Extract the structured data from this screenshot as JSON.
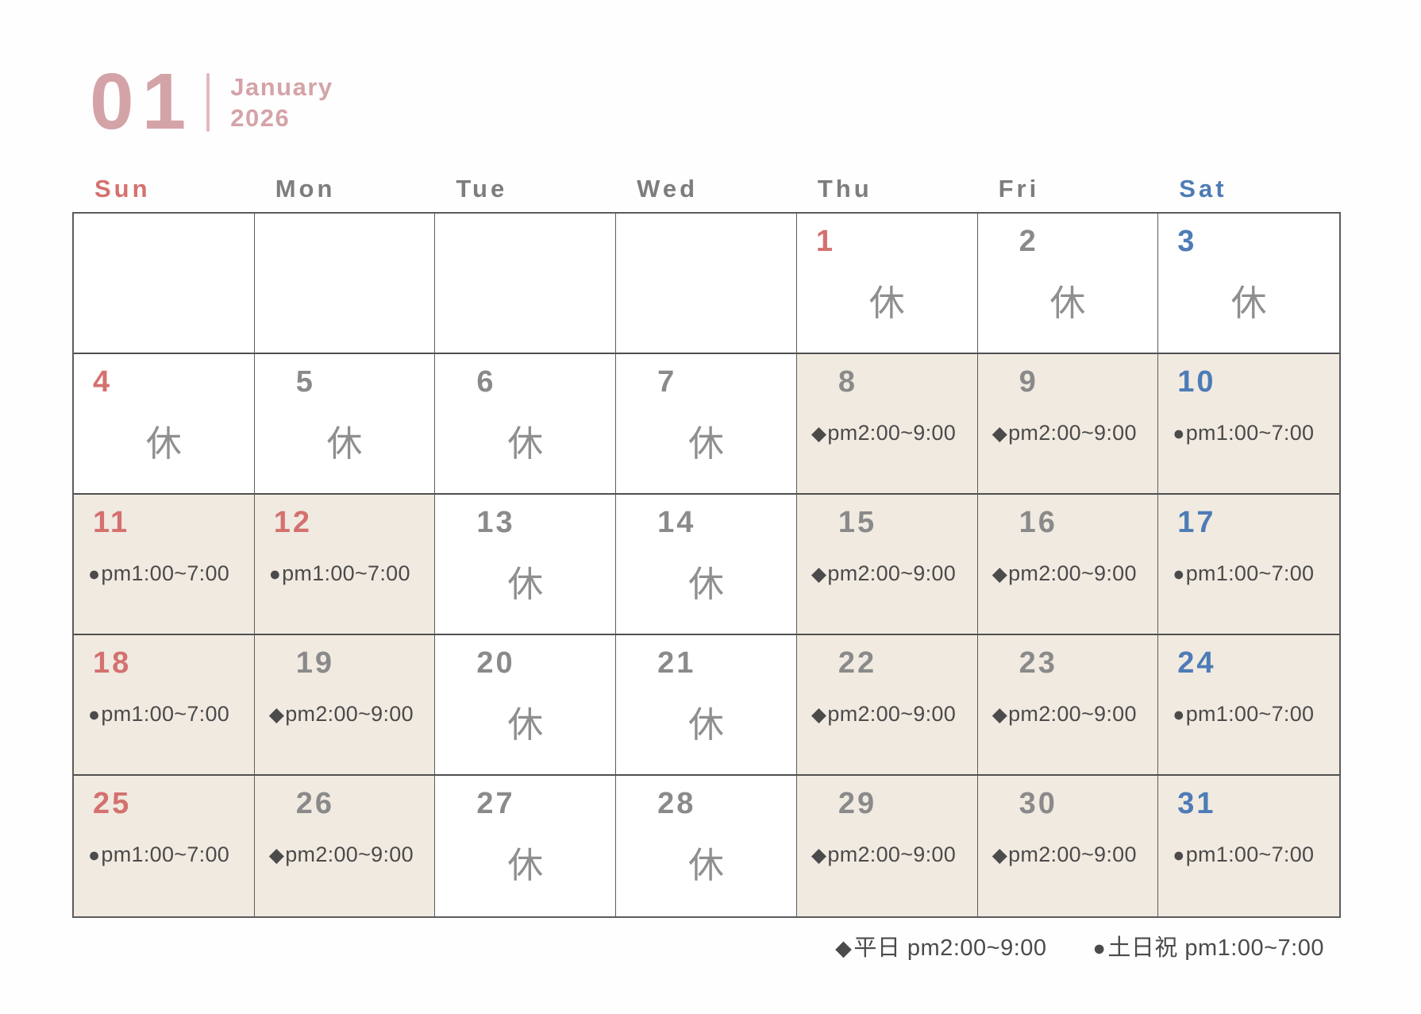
{
  "header": {
    "month_number": "01",
    "month_name": "January",
    "year": "2026"
  },
  "weekdays": [
    {
      "label": "Sun",
      "type": "sun"
    },
    {
      "label": "Mon",
      "type": "weekday"
    },
    {
      "label": "Tue",
      "type": "weekday"
    },
    {
      "label": "Wed",
      "type": "weekday"
    },
    {
      "label": "Thu",
      "type": "weekday"
    },
    {
      "label": "Fri",
      "type": "weekday"
    },
    {
      "label": "Sat",
      "type": "sat"
    }
  ],
  "weeks": [
    [
      {
        "day": "",
        "type": "weekday",
        "kind": "empty",
        "shaded": false
      },
      {
        "day": "",
        "type": "weekday",
        "kind": "empty",
        "shaded": false
      },
      {
        "day": "",
        "type": "weekday",
        "kind": "empty",
        "shaded": false
      },
      {
        "day": "",
        "type": "weekday",
        "kind": "empty",
        "shaded": false
      },
      {
        "day": "1",
        "type": "sun",
        "kind": "closed",
        "label": "休",
        "shaded": false
      },
      {
        "day": "2",
        "type": "weekday",
        "kind": "closed",
        "label": "休",
        "shaded": false
      },
      {
        "day": "3",
        "type": "sat",
        "kind": "closed",
        "label": "休",
        "shaded": false
      }
    ],
    [
      {
        "day": "4",
        "type": "sun",
        "kind": "closed",
        "label": "休",
        "shaded": false
      },
      {
        "day": "5",
        "type": "weekday",
        "kind": "closed",
        "label": "休",
        "shaded": false
      },
      {
        "day": "6",
        "type": "weekday",
        "kind": "closed",
        "label": "休",
        "shaded": false
      },
      {
        "day": "7",
        "type": "weekday",
        "kind": "closed",
        "label": "休",
        "shaded": false
      },
      {
        "day": "8",
        "type": "weekday",
        "kind": "hours",
        "symbol": "◆",
        "hours": "pm2:00~9:00",
        "shaded": true
      },
      {
        "day": "9",
        "type": "weekday",
        "kind": "hours",
        "symbol": "◆",
        "hours": "pm2:00~9:00",
        "shaded": true
      },
      {
        "day": "10",
        "type": "sat",
        "kind": "hours",
        "symbol": "●",
        "hours": "pm1:00~7:00",
        "shaded": true
      }
    ],
    [
      {
        "day": "11",
        "type": "sun",
        "kind": "hours",
        "symbol": "●",
        "hours": "pm1:00~7:00",
        "shaded": true
      },
      {
        "day": "12",
        "type": "sun",
        "kind": "hours",
        "symbol": "●",
        "hours": "pm1:00~7:00",
        "shaded": true
      },
      {
        "day": "13",
        "type": "weekday",
        "kind": "closed",
        "label": "休",
        "shaded": false
      },
      {
        "day": "14",
        "type": "weekday",
        "kind": "closed",
        "label": "休",
        "shaded": false
      },
      {
        "day": "15",
        "type": "weekday",
        "kind": "hours",
        "symbol": "◆",
        "hours": "pm2:00~9:00",
        "shaded": true
      },
      {
        "day": "16",
        "type": "weekday",
        "kind": "hours",
        "symbol": "◆",
        "hours": "pm2:00~9:00",
        "shaded": true
      },
      {
        "day": "17",
        "type": "sat",
        "kind": "hours",
        "symbol": "●",
        "hours": "pm1:00~7:00",
        "shaded": true
      }
    ],
    [
      {
        "day": "18",
        "type": "sun",
        "kind": "hours",
        "symbol": "●",
        "hours": "pm1:00~7:00",
        "shaded": true
      },
      {
        "day": "19",
        "type": "weekday",
        "kind": "hours",
        "symbol": "◆",
        "hours": "pm2:00~9:00",
        "shaded": true
      },
      {
        "day": "20",
        "type": "weekday",
        "kind": "closed",
        "label": "休",
        "shaded": false
      },
      {
        "day": "21",
        "type": "weekday",
        "kind": "closed",
        "label": "休",
        "shaded": false
      },
      {
        "day": "22",
        "type": "weekday",
        "kind": "hours",
        "symbol": "◆",
        "hours": "pm2:00~9:00",
        "shaded": true
      },
      {
        "day": "23",
        "type": "weekday",
        "kind": "hours",
        "symbol": "◆",
        "hours": "pm2:00~9:00",
        "shaded": true
      },
      {
        "day": "24",
        "type": "sat",
        "kind": "hours",
        "symbol": "●",
        "hours": "pm1:00~7:00",
        "shaded": true
      }
    ],
    [
      {
        "day": "25",
        "type": "sun",
        "kind": "hours",
        "symbol": "●",
        "hours": "pm1:00~7:00",
        "shaded": true
      },
      {
        "day": "26",
        "type": "weekday",
        "kind": "hours",
        "symbol": "◆",
        "hours": "pm2:00~9:00",
        "shaded": true
      },
      {
        "day": "27",
        "type": "weekday",
        "kind": "closed",
        "label": "休",
        "shaded": false
      },
      {
        "day": "28",
        "type": "weekday",
        "kind": "closed",
        "label": "休",
        "shaded": false
      },
      {
        "day": "29",
        "type": "weekday",
        "kind": "hours",
        "symbol": "◆",
        "hours": "pm2:00~9:00",
        "shaded": true
      },
      {
        "day": "30",
        "type": "weekday",
        "kind": "hours",
        "symbol": "◆",
        "hours": "pm2:00~9:00",
        "shaded": true
      },
      {
        "day": "31",
        "type": "sat",
        "kind": "hours",
        "symbol": "●",
        "hours": "pm1:00~7:00",
        "shaded": true
      }
    ]
  ],
  "legend": [
    {
      "symbol": "◆",
      "symbol_name": "diamond-icon",
      "label": "平日 pm2:00~9:00"
    },
    {
      "symbol": "●",
      "symbol_name": "circle-icon",
      "label": "土日祝 pm1:00~7:00"
    }
  ],
  "colors": {
    "accent_pink": "#d4a3a8",
    "divider_pink": "#dfbabd",
    "sunday_red": "#d4716f",
    "saturday_blue": "#4d7cb6",
    "weekday_gray": "#7d7d7d",
    "number_gray": "#8a8a8a",
    "closed_gray": "#8f8f8f",
    "hours_text": "#4b4b4b",
    "shaded_cell": "#f1eae1",
    "grid_line": "#5c5c5c",
    "grid_line_heavy": "#4f4f4f"
  }
}
